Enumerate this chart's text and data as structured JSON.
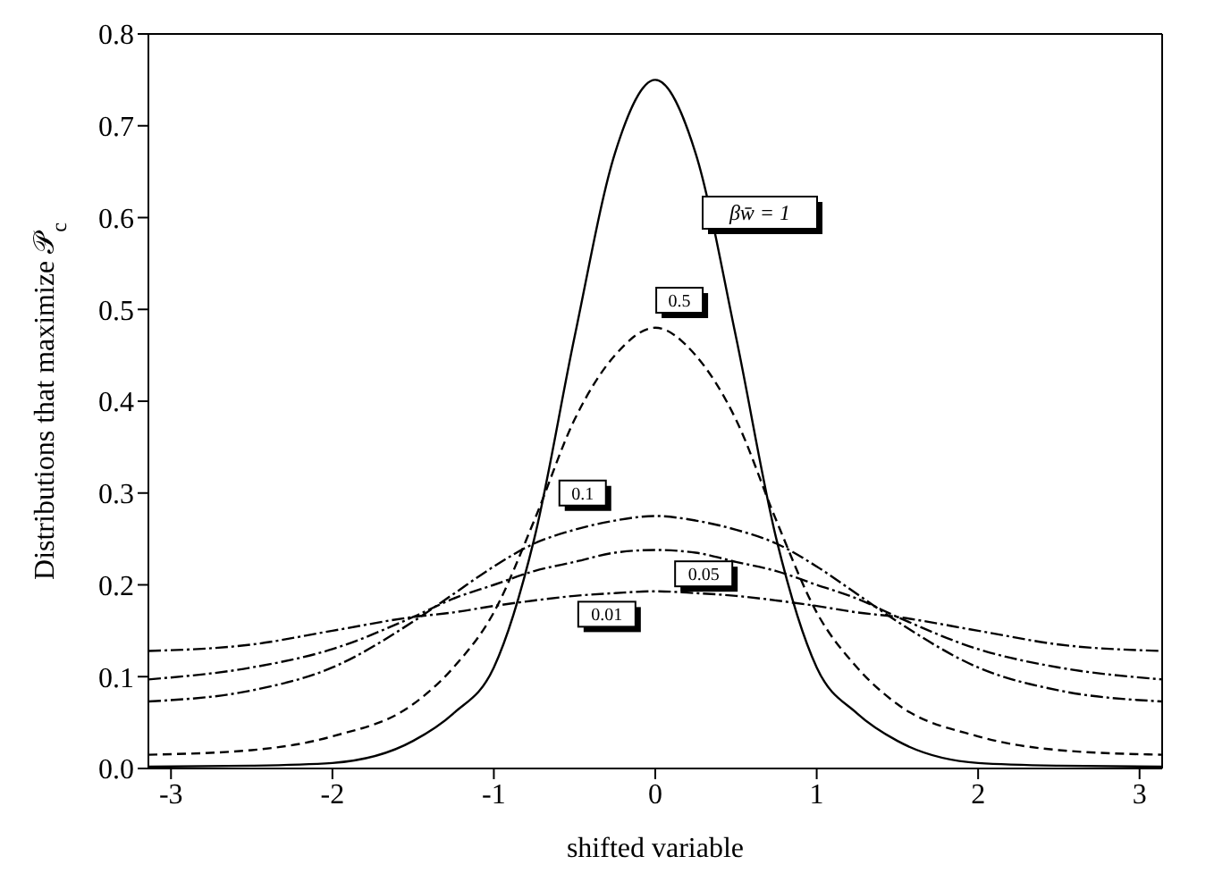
{
  "chart_data": {
    "type": "line",
    "xlabel": "shifted variable",
    "ylabel": "Distributions that maximize 𝒫$_{c}$",
    "x": [
      -3.14,
      -2.5,
      -2,
      -1.5,
      -1.25,
      -1,
      -0.75,
      -0.5,
      -0.25,
      0,
      0.25,
      0.5,
      0.75,
      1,
      1.25,
      1.5,
      2,
      2.5,
      3.14
    ],
    "series": [
      {
        "color": "#000000",
        "line_style": "solid",
        "values": [
          0.002,
          0.003,
          0.006,
          0.03,
          0.06,
          0.11,
          0.25,
          0.47,
          0.67,
          0.75,
          0.67,
          0.47,
          0.25,
          0.11,
          0.06,
          0.03,
          0.006,
          0.003,
          0.002
        ]
      },
      {
        "color": "#000000",
        "line_style": "dashed",
        "values": [
          0.015,
          0.02,
          0.035,
          0.07,
          0.11,
          0.17,
          0.27,
          0.38,
          0.45,
          0.48,
          0.45,
          0.38,
          0.27,
          0.17,
          0.11,
          0.07,
          0.035,
          0.02,
          0.015
        ]
      },
      {
        "color": "#000000",
        "line_style": "dotted",
        "values": [
          0.073,
          0.085,
          0.11,
          0.16,
          0.19,
          0.22,
          0.245,
          0.26,
          0.27,
          0.275,
          0.27,
          0.26,
          0.245,
          0.22,
          0.19,
          0.16,
          0.11,
          0.085,
          0.073
        ]
      },
      {
        "color": "#000000",
        "line_style": "dotted",
        "values": [
          0.097,
          0.11,
          0.13,
          0.165,
          0.185,
          0.2,
          0.215,
          0.225,
          0.235,
          0.238,
          0.235,
          0.225,
          0.215,
          0.2,
          0.185,
          0.165,
          0.13,
          0.11,
          0.097
        ]
      },
      {
        "color": "#000000",
        "line_style": "dotted",
        "values": [
          0.128,
          0.135,
          0.15,
          0.165,
          0.17,
          0.177,
          0.183,
          0.188,
          0.191,
          0.193,
          0.191,
          0.188,
          0.183,
          0.177,
          0.17,
          0.165,
          0.15,
          0.135,
          0.128
        ]
      }
    ],
    "annotations": [
      "βw̄ = 1",
      {
        "text": "0.5",
        "x": 0.15,
        "y": 0.51
      },
      {
        "text": "0.1",
        "x": -0.45,
        "y": 0.3
      },
      {
        "text": "0.05",
        "x": 0.3,
        "y": 0.212
      },
      {
        "text": "0.01",
        "x": -0.3,
        "y": 0.168
      }
    ],
    "xlim": [
      -3.14,
      3.14
    ],
    "xticks": [
      -3,
      -2,
      -1,
      0,
      1,
      2,
      3
    ],
    "ylim": [
      0,
      0.8
    ],
    "yticks": [
      {
        "value": 0,
        "label": "0.0"
      },
      {
        "value": 0.1,
        "label": "0.1"
      },
      {
        "value": 0.2,
        "label": "0.2"
      },
      {
        "value": 0.3,
        "label": "0.3"
      },
      {
        "value": 0.4,
        "label": "0.4"
      },
      {
        "value": 0.5,
        "label": "0.5"
      },
      {
        "value": 0.6,
        "label": "0.6"
      },
      {
        "value": 0.7,
        "label": "0.7"
      },
      {
        "value": 0.8,
        "label": "0.8"
      }
    ],
    "grid": false,
    "legend": false,
    "marker": "none"
  }
}
